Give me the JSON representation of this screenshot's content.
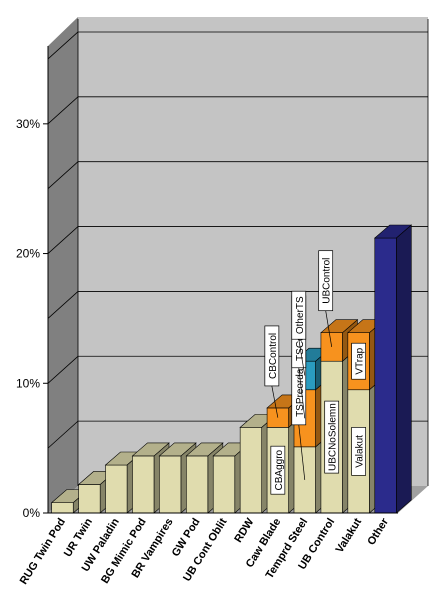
{
  "chart_data": {
    "type": "bar",
    "stacked": true,
    "projection": "3d",
    "title": "",
    "xlabel": "",
    "ylabel": "",
    "ylim": [
      0,
      36
    ],
    "y_ticks": [
      0,
      10,
      20,
      30
    ],
    "y_tick_labels": [
      "0%",
      "10%",
      "20%",
      "30%"
    ],
    "grid": true,
    "legend": "none",
    "colors": {
      "base": "#e0dcae",
      "orange": "#f7921e",
      "teal": "#2a9bbf",
      "other": "#2b2b8c",
      "wall": "#c4c4c4",
      "left_wall": "#808080",
      "floor": "#a0a0a0"
    },
    "categories": [
      "RUG Twin Pod",
      "UR Twin",
      "UW Paladin",
      "BG Mimic Pod",
      "BR Vampires",
      "GW Pod",
      "UB Cont Oblit",
      "RDW",
      "Caw Blade",
      "Temprd Steel",
      "UB Control",
      "Valakut",
      "Other"
    ],
    "bars": [
      {
        "category": "RUG Twin Pod",
        "segments": [
          {
            "value": 0.8,
            "color": "base",
            "label": ""
          }
        ]
      },
      {
        "category": "UR Twin",
        "segments": [
          {
            "value": 2.2,
            "color": "base",
            "label": ""
          }
        ]
      },
      {
        "category": "UW Paladin",
        "segments": [
          {
            "value": 3.7,
            "color": "base",
            "label": ""
          }
        ]
      },
      {
        "category": "BG Mimic Pod",
        "segments": [
          {
            "value": 4.4,
            "color": "base",
            "label": ""
          }
        ]
      },
      {
        "category": "BR Vampires",
        "segments": [
          {
            "value": 4.4,
            "color": "base",
            "label": ""
          }
        ]
      },
      {
        "category": "GW Pod",
        "segments": [
          {
            "value": 4.4,
            "color": "base",
            "label": ""
          }
        ]
      },
      {
        "category": "UB Cont Oblit",
        "segments": [
          {
            "value": 4.4,
            "color": "base",
            "label": ""
          }
        ]
      },
      {
        "category": "RDW",
        "segments": [
          {
            "value": 6.6,
            "color": "base",
            "label": ""
          }
        ]
      },
      {
        "category": "Caw Blade",
        "segments": [
          {
            "value": 6.6,
            "color": "base",
            "label": "CBAggro"
          },
          {
            "value": 1.5,
            "color": "orange",
            "label": "CBControl"
          }
        ]
      },
      {
        "category": "Temprd Steel",
        "segments": [
          {
            "value": 5.1,
            "color": "base",
            "label": "TSPreordain"
          },
          {
            "value": 4.4,
            "color": "orange",
            "label": "TSContested"
          },
          {
            "value": 2.2,
            "color": "teal",
            "label": "OtherTS"
          }
        ]
      },
      {
        "category": "UB Control",
        "segments": [
          {
            "value": 11.7,
            "color": "base",
            "label": "UBCNoSolemn"
          },
          {
            "value": 2.2,
            "color": "orange",
            "label": "UBControl"
          }
        ]
      },
      {
        "category": "Valakut",
        "segments": [
          {
            "value": 9.5,
            "color": "base",
            "label": "Valakut"
          },
          {
            "value": 4.4,
            "color": "orange",
            "label": "VTrap"
          }
        ]
      },
      {
        "category": "Other",
        "segments": [
          {
            "value": 21.2,
            "color": "other",
            "label": ""
          }
        ]
      }
    ]
  }
}
